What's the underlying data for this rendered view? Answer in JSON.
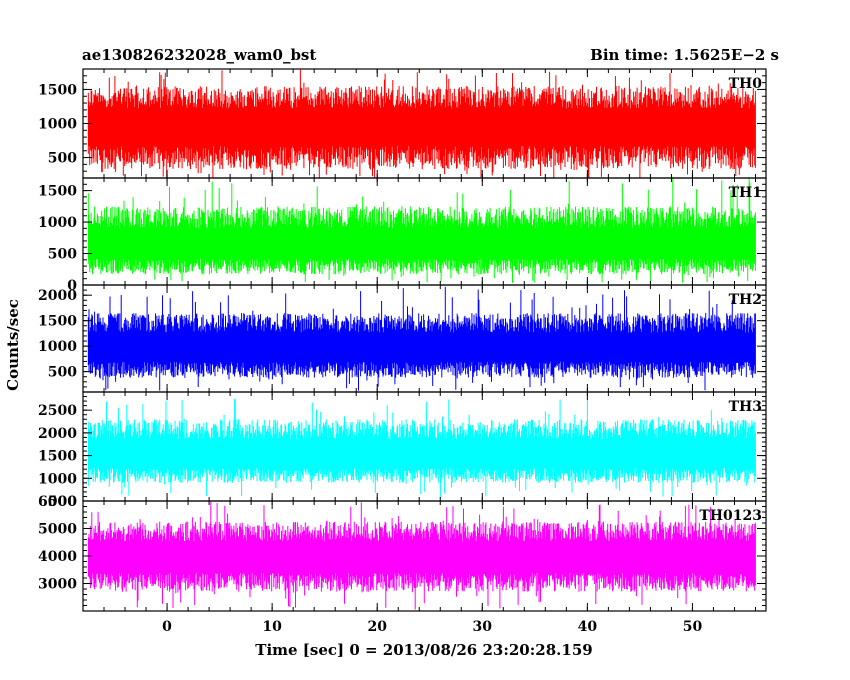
{
  "header": {
    "title": "ae130826232028_wam0_bst",
    "bin_time": "Bin time: 1.5625E−2 s"
  },
  "chart_data": {
    "type": "line",
    "xlabel": "Time [sec] 0 = 2013/08/26 23:20:28.159",
    "ylabel": "Counts/sec",
    "xlim": [
      -8,
      57
    ],
    "x_ticks": [
      0,
      10,
      20,
      30,
      40,
      50
    ],
    "x_range_data": [
      -7.5,
      56
    ],
    "grid": false,
    "panels": [
      {
        "name": "TH0",
        "color": "#ff0000",
        "ylim": [
          200,
          1800
        ],
        "y_ticks": [
          500,
          1000,
          1500
        ],
        "mean": 950,
        "band_low": 330,
        "band_high": 1550,
        "spike_low": 170,
        "spike_high": 1800
      },
      {
        "name": "TH1",
        "color": "#00ff00",
        "ylim": [
          0,
          1700
        ],
        "y_ticks": [
          0,
          500,
          1000,
          1500
        ],
        "mean": 620,
        "band_low": 170,
        "band_high": 1250,
        "spike_low": 30,
        "spike_high": 1700
      },
      {
        "name": "TH2",
        "color": "#0000ff",
        "ylim": [
          100,
          2200
        ],
        "y_ticks": [
          500,
          1000,
          1500,
          2000
        ],
        "mean": 950,
        "band_low": 380,
        "band_high": 1650,
        "spike_low": 120,
        "spike_high": 2200
      },
      {
        "name": "TH3",
        "color": "#00ffff",
        "ylim": [
          500,
          2900
        ],
        "y_ticks": [
          500,
          1000,
          1500,
          2000,
          2500
        ],
        "mean": 1500,
        "band_low": 900,
        "band_high": 2300,
        "spike_low": 580,
        "spike_high": 2800
      },
      {
        "name": "TH0123",
        "color": "#ff00ff",
        "ylim": [
          2000,
          6000
        ],
        "y_ticks": [
          3000,
          4000,
          5000,
          6000
        ],
        "mean": 3950,
        "band_low": 2700,
        "band_high": 5250,
        "spike_low": 2050,
        "spike_high": 6000
      }
    ]
  }
}
